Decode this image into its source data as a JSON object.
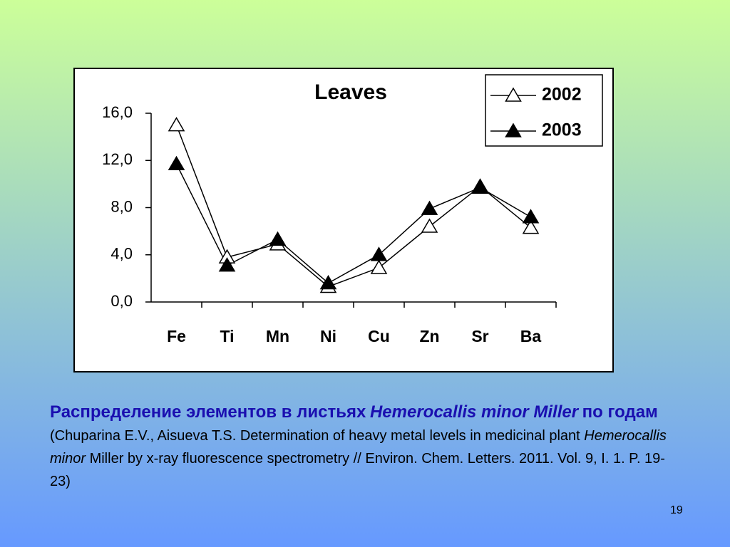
{
  "chart_data": {
    "type": "line",
    "title": "Leaves",
    "categories": [
      "Fe",
      "Ti",
      "Mn",
      "Ni",
      "Cu",
      "Zn",
      "Sr",
      "Ba"
    ],
    "series": [
      {
        "name": "2002",
        "color": "#000000",
        "marker_fill": "#ffffff",
        "values": [
          15.0,
          3.8,
          4.9,
          1.3,
          2.9,
          6.4,
          9.8,
          6.3
        ]
      },
      {
        "name": "2003",
        "color": "#000000",
        "marker_fill": "#000000",
        "values": [
          11.7,
          3.1,
          5.3,
          1.6,
          4.0,
          7.9,
          9.7,
          7.2
        ]
      }
    ],
    "ylim": [
      0,
      16
    ],
    "yticks": [
      {
        "value": 0,
        "label": "0,0"
      },
      {
        "value": 4,
        "label": "4,0"
      },
      {
        "value": 8,
        "label": "8,0"
      },
      {
        "value": 12,
        "label": "12,0"
      },
      {
        "value": 16,
        "label": "16,0"
      }
    ],
    "grid": false,
    "legend": "top-right"
  },
  "caption": {
    "heading": "Распределение элементов в листьях",
    "heading_italic": "Hemerocallis minor Miller",
    "heading_end": "по годам",
    "reference_start": "(Chuparina E.V., Aisueva T.S. Determination of heavy metal levels in medicinal plant",
    "reference_italic": "Hemerocallis minor",
    "reference_end": "Miller by x-ray fluorescence spectrometry // Environ. Chem. Letters. 2011. Vol. 9, I. 1. P. 19-23)"
  },
  "slide_number": "19"
}
